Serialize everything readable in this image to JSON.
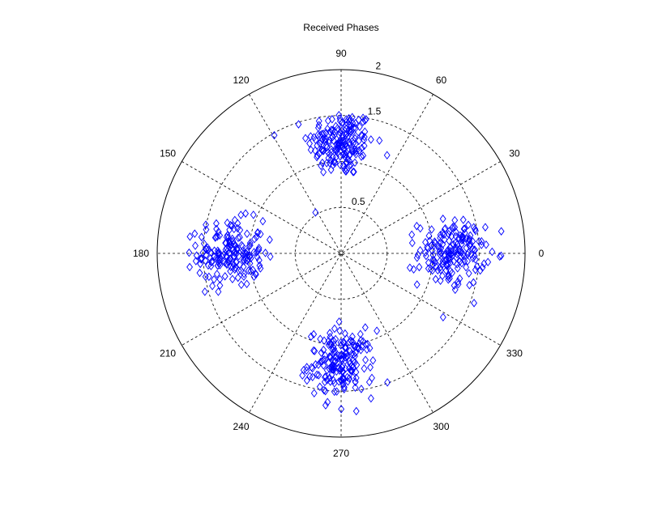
{
  "chart_data": {
    "type": "scatter",
    "subtype": "polar",
    "title": "Received Phases",
    "marker": "diamond",
    "marker_color": "#0000ff",
    "grid": true,
    "rlim": [
      0,
      2
    ],
    "radial_ticks": [
      "0.5",
      "1.5",
      "2"
    ],
    "angular_ticks": [
      "0",
      "30",
      "60",
      "90",
      "120",
      "150",
      "180",
      "210",
      "240",
      "270",
      "300",
      "330"
    ],
    "clusters": [
      {
        "theta_deg": 90,
        "r": 1.2,
        "n": 180
      },
      {
        "theta_deg": 180,
        "r": 1.2,
        "n": 180
      },
      {
        "theta_deg": 270,
        "r": 1.2,
        "n": 180
      },
      {
        "theta_deg": 0,
        "r": 1.2,
        "n": 180
      }
    ],
    "spread": 0.18
  }
}
